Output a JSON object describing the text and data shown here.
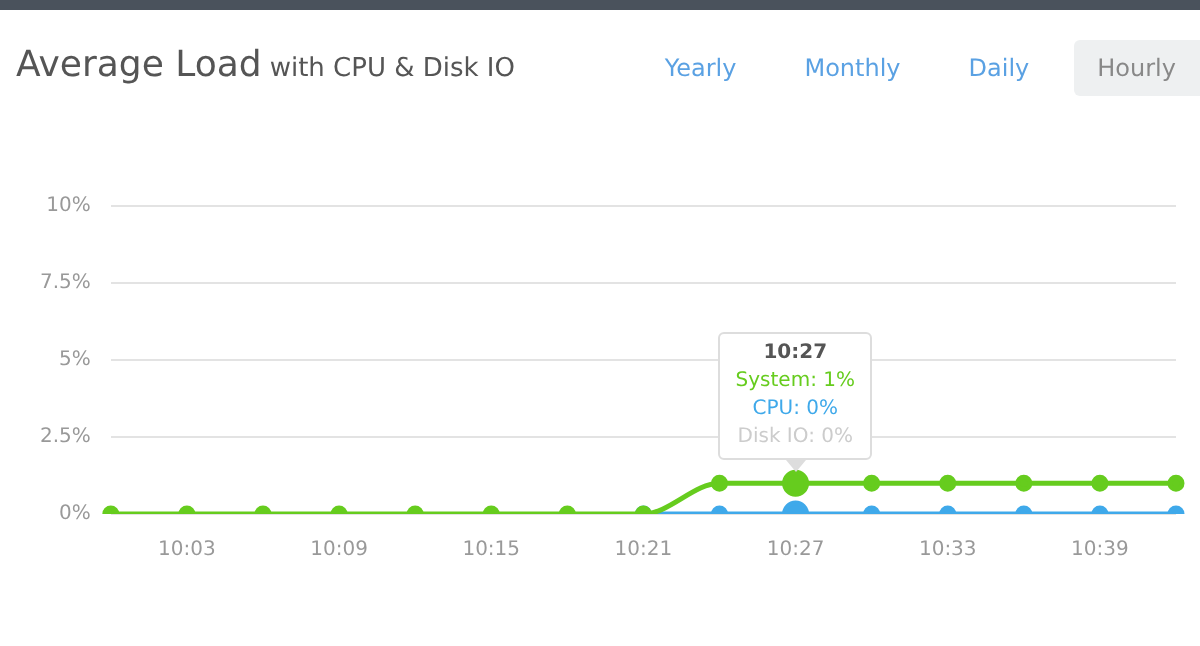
{
  "chart_data": {
    "type": "line",
    "title": "Average Load",
    "subtitle": "with CPU & Disk IO",
    "categories": [
      null,
      "10:03",
      null,
      "10:09",
      null,
      "10:15",
      null,
      "10:21",
      null,
      "10:27",
      null,
      "10:33",
      null,
      "10:39",
      null
    ],
    "series": [
      {
        "color": "#66cc1e",
        "values": [
          0,
          0,
          0,
          0,
          0,
          0,
          0,
          0,
          1,
          1,
          1,
          1,
          1,
          1,
          1
        ]
      },
      {
        "color": "#3fa9ea",
        "values": [
          null,
          null,
          null,
          null,
          null,
          null,
          null,
          0,
          0,
          0,
          0,
          0,
          0,
          0,
          0
        ]
      },
      {
        "color": "#cccccc",
        "values": [
          null,
          null,
          null,
          null,
          null,
          null,
          null,
          null,
          null,
          null,
          null,
          null,
          null,
          null,
          null
        ]
      }
    ],
    "ylim": [
      0,
      10
    ],
    "yticks": [
      {
        "value": 0,
        "label": "0%"
      },
      {
        "value": 2.5,
        "label": "2.5%"
      },
      {
        "value": 5,
        "label": "5%"
      },
      {
        "value": 7.5,
        "label": "7.5%"
      },
      {
        "value": 10,
        "label": "10%"
      }
    ],
    "grid": "y",
    "legend": false,
    "marker": "circle",
    "line_style": "solid",
    "annotations": [
      "10:27",
      "System: 1%",
      "CPU: 0%",
      "Disk IO: 0%",
      "Yearly",
      "Monthly",
      "Daily",
      "Hourly"
    ]
  }
}
